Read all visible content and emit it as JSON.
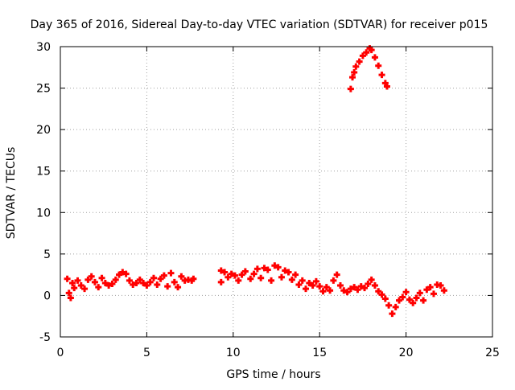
{
  "chart_data": {
    "type": "scatter",
    "title": "Day 365 of 2016, Sidereal Day-to-day VTEC variation (SDTVAR) for receiver p015",
    "xlabel": "GPS time / hours",
    "ylabel": "SDTVAR / TECUs",
    "xlim": [
      0,
      25
    ],
    "ylim": [
      -5,
      30
    ],
    "x_ticks": [
      0,
      5,
      10,
      15,
      20,
      25
    ],
    "y_ticks": [
      -5,
      0,
      5,
      10,
      15,
      20,
      25,
      30
    ],
    "x_tick_labels": [
      "0",
      "5",
      "10",
      "15",
      "20",
      "25"
    ],
    "y_tick_labels": [
      "-5",
      "0",
      "5",
      "10",
      "15",
      "20",
      "25",
      "30"
    ],
    "grid": true,
    "legend": "none",
    "marker_color": "#ff0000",
    "series": [
      {
        "points": [
          [
            0.4,
            2.0
          ],
          [
            0.5,
            0.3
          ],
          [
            0.6,
            -0.3
          ],
          [
            0.7,
            1.5
          ],
          [
            0.8,
            0.9
          ],
          [
            1.0,
            1.8
          ],
          [
            1.2,
            1.2
          ],
          [
            1.4,
            0.8
          ],
          [
            1.6,
            1.9
          ],
          [
            1.8,
            2.3
          ],
          [
            2.0,
            1.6
          ],
          [
            2.2,
            1.0
          ],
          [
            2.4,
            2.1
          ],
          [
            2.6,
            1.5
          ],
          [
            2.8,
            1.2
          ],
          [
            3.0,
            1.4
          ],
          [
            3.2,
            1.9
          ],
          [
            3.4,
            2.5
          ],
          [
            3.6,
            2.8
          ],
          [
            3.8,
            2.6
          ],
          [
            4.0,
            1.8
          ],
          [
            4.2,
            1.3
          ],
          [
            4.4,
            1.5
          ],
          [
            4.6,
            1.9
          ],
          [
            4.8,
            1.5
          ],
          [
            5.0,
            1.2
          ],
          [
            5.2,
            1.6
          ],
          [
            5.4,
            2.1
          ],
          [
            5.6,
            1.3
          ],
          [
            5.8,
            2.0
          ],
          [
            6.0,
            2.4
          ],
          [
            6.2,
            1.1
          ],
          [
            6.4,
            2.7
          ],
          [
            6.6,
            1.6
          ],
          [
            6.8,
            1.0
          ],
          [
            7.0,
            2.3
          ],
          [
            7.2,
            1.8
          ],
          [
            7.4,
            1.9
          ],
          [
            7.6,
            1.8
          ],
          [
            7.7,
            2.0
          ],
          [
            9.3,
            3.0
          ],
          [
            9.3,
            1.6
          ],
          [
            9.5,
            2.8
          ],
          [
            9.7,
            2.2
          ],
          [
            9.9,
            2.6
          ],
          [
            10.1,
            2.4
          ],
          [
            10.3,
            1.8
          ],
          [
            10.5,
            2.5
          ],
          [
            10.7,
            2.9
          ],
          [
            11.0,
            2.0
          ],
          [
            11.2,
            2.6
          ],
          [
            11.4,
            3.2
          ],
          [
            11.6,
            2.1
          ],
          [
            11.8,
            3.3
          ],
          [
            12.0,
            3.1
          ],
          [
            12.2,
            1.8
          ],
          [
            12.4,
            3.6
          ],
          [
            12.6,
            3.4
          ],
          [
            12.8,
            2.2
          ],
          [
            13.0,
            3.0
          ],
          [
            13.2,
            2.8
          ],
          [
            13.4,
            1.9
          ],
          [
            13.6,
            2.5
          ],
          [
            13.8,
            1.3
          ],
          [
            14.0,
            1.8
          ],
          [
            14.2,
            0.8
          ],
          [
            14.4,
            1.5
          ],
          [
            14.6,
            1.2
          ],
          [
            14.8,
            1.7
          ],
          [
            15.0,
            1.1
          ],
          [
            15.2,
            0.5
          ],
          [
            15.4,
            1.0
          ],
          [
            15.6,
            0.6
          ],
          [
            15.8,
            1.8
          ],
          [
            16.0,
            2.5
          ],
          [
            16.2,
            1.2
          ],
          [
            16.4,
            0.6
          ],
          [
            16.6,
            0.4
          ],
          [
            16.8,
            0.8
          ],
          [
            17.0,
            1.0
          ],
          [
            17.2,
            0.7
          ],
          [
            17.4,
            1.1
          ],
          [
            17.6,
            0.9
          ],
          [
            17.8,
            1.4
          ],
          [
            18.0,
            1.9
          ],
          [
            18.2,
            1.2
          ],
          [
            18.4,
            0.5
          ],
          [
            18.6,
            0.1
          ],
          [
            18.8,
            -0.4
          ],
          [
            19.0,
            -1.2
          ],
          [
            19.2,
            -2.2
          ],
          [
            19.4,
            -1.4
          ],
          [
            19.6,
            -0.6
          ],
          [
            19.8,
            -0.2
          ],
          [
            20.0,
            0.4
          ],
          [
            20.2,
            -0.5
          ],
          [
            20.4,
            -0.9
          ],
          [
            20.6,
            -0.3
          ],
          [
            20.8,
            0.3
          ],
          [
            21.0,
            -0.6
          ],
          [
            21.2,
            0.7
          ],
          [
            21.4,
            1.0
          ],
          [
            21.6,
            0.2
          ],
          [
            21.8,
            1.3
          ],
          [
            22.0,
            1.2
          ],
          [
            22.2,
            0.6
          ],
          [
            16.8,
            24.9
          ],
          [
            16.9,
            26.3
          ],
          [
            17.0,
            26.9
          ],
          [
            17.1,
            27.6
          ],
          [
            17.3,
            28.2
          ],
          [
            17.5,
            28.9
          ],
          [
            17.7,
            29.3
          ],
          [
            17.9,
            29.8
          ],
          [
            18.0,
            29.6
          ],
          [
            18.2,
            28.7
          ],
          [
            18.4,
            27.7
          ],
          [
            18.6,
            26.6
          ],
          [
            18.8,
            25.6
          ],
          [
            18.9,
            25.2
          ]
        ]
      }
    ]
  }
}
